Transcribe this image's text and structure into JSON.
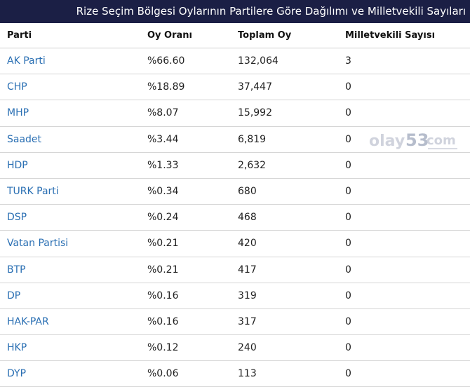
{
  "title": "Rize Seçim Bölgesi Oylarının Partilere Göre Dağılımı ve Milletvekili Sayıları",
  "headers": {
    "party": "Parti",
    "rate": "Oy Oranı",
    "votes": "Toplam Oy",
    "seats": "Milletvekili Sayısı"
  },
  "rows": [
    {
      "party": "AK Parti",
      "rate": "%66.60",
      "votes": "132,064",
      "seats": "3"
    },
    {
      "party": "CHP",
      "rate": "%18.89",
      "votes": "37,447",
      "seats": "0"
    },
    {
      "party": "MHP",
      "rate": "%8.07",
      "votes": "15,992",
      "seats": "0"
    },
    {
      "party": "Saadet",
      "rate": "%3.44",
      "votes": "6,819",
      "seats": "0"
    },
    {
      "party": "HDP",
      "rate": "%1.33",
      "votes": "2,632",
      "seats": "0"
    },
    {
      "party": "TURK Parti",
      "rate": "%0.34",
      "votes": "680",
      "seats": "0"
    },
    {
      "party": "DSP",
      "rate": "%0.24",
      "votes": "468",
      "seats": "0"
    },
    {
      "party": "Vatan Partisi",
      "rate": "%0.21",
      "votes": "420",
      "seats": "0"
    },
    {
      "party": "BTP",
      "rate": "%0.21",
      "votes": "417",
      "seats": "0"
    },
    {
      "party": "DP",
      "rate": "%0.16",
      "votes": "319",
      "seats": "0"
    },
    {
      "party": "HAK-PAR",
      "rate": "%0.16",
      "votes": "317",
      "seats": "0"
    },
    {
      "party": "HKP",
      "rate": "%0.12",
      "votes": "240",
      "seats": "0"
    },
    {
      "party": "DYP",
      "rate": "%0.06",
      "votes": "113",
      "seats": "0"
    }
  ],
  "watermark": {
    "text": "olay53com",
    "color_main": "#c8ccd8",
    "color_accent": "#aab2c4"
  },
  "colors": {
    "title_bg": "#1b1f45",
    "link": "#2a6fb3"
  }
}
